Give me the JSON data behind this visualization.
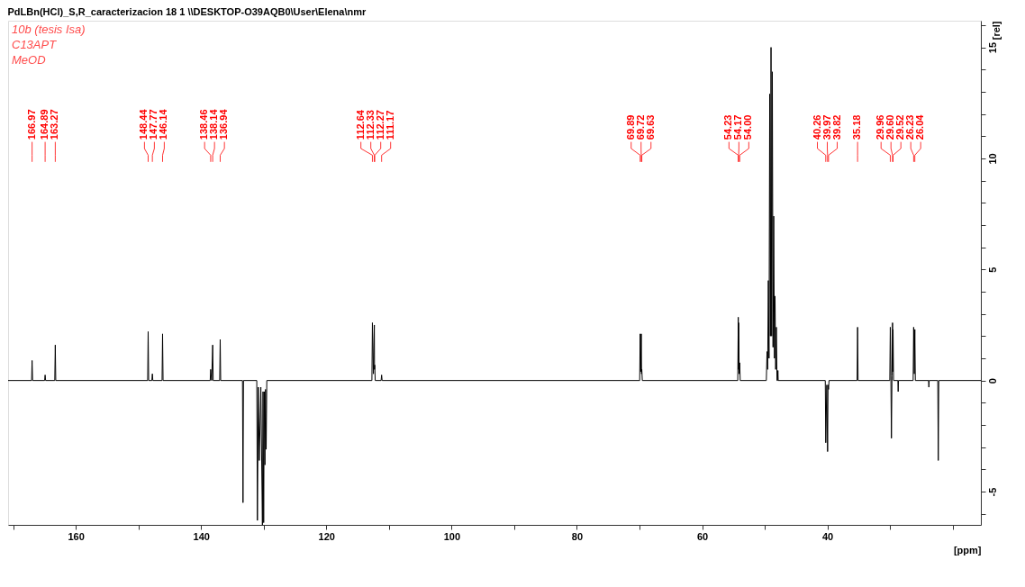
{
  "chart_data": {
    "type": "line",
    "title": "PdLBn(HCl)_S,R_caracterizacion  18  1  \\\\DESKTOP-O39AQB0\\User\\Elena\\nmr",
    "xlabel": "[ppm]",
    "ylabel": "[rel]",
    "xlim": [
      170.8,
      15.5
    ],
    "ylim": [
      -6.5,
      16.2
    ],
    "xticks": [
      {
        "value": 170,
        "label": null
      },
      160,
      {
        "value": 150,
        "label": null
      },
      140,
      {
        "value": 130,
        "label": null
      },
      120,
      {
        "value": 110,
        "label": null
      },
      100,
      {
        "value": 90,
        "label": null
      },
      80,
      {
        "value": 70,
        "label": null
      },
      60,
      {
        "value": 50,
        "label": null
      },
      40,
      {
        "value": 30,
        "label": null
      },
      {
        "value": 20,
        "label": null
      }
    ],
    "yticks": [
      {
        "value": -6,
        "label": null
      },
      -5,
      {
        "value": -4,
        "label": null
      },
      {
        "value": -3,
        "label": null
      },
      {
        "value": -2,
        "label": null
      },
      {
        "value": -1,
        "label": null
      },
      0,
      {
        "value": 1,
        "label": null
      },
      {
        "value": 2,
        "label": null
      },
      {
        "value": 3,
        "label": null
      },
      {
        "value": 4,
        "label": null
      },
      5,
      {
        "value": 6,
        "label": null
      },
      {
        "value": 7,
        "label": null
      },
      {
        "value": 8,
        "label": null
      },
      {
        "value": 9,
        "label": null
      },
      10,
      {
        "value": 11,
        "label": null
      },
      {
        "value": 12,
        "label": null
      },
      {
        "value": 13,
        "label": null
      },
      {
        "value": 14,
        "label": null
      },
      15,
      {
        "value": 16,
        "label": null
      }
    ],
    "grid": false,
    "legend": false,
    "marker": "none",
    "line_style": "solid",
    "series": [
      {
        "color": "#000000",
        "x": [
          170.8,
          167.05,
          166.97,
          166.89,
          164.97,
          164.89,
          164.81,
          163.35,
          163.27,
          163.19,
          148.52,
          148.44,
          148.36,
          147.85,
          147.77,
          147.69,
          146.22,
          146.14,
          146.06,
          138.54,
          138.46,
          138.3,
          138.14,
          138.06,
          137.02,
          136.94,
          136.86,
          133.38,
          133.3,
          133.22,
          131.1,
          131.0,
          130.85,
          130.7,
          130.45,
          130.2,
          130.1,
          130.0,
          129.9,
          129.8,
          129.7,
          129.6,
          129.5,
          112.72,
          112.64,
          112.48,
          112.33,
          112.3,
          112.27,
          112.19,
          111.25,
          111.17,
          111.09,
          69.97,
          69.89,
          69.8,
          69.72,
          69.67,
          69.63,
          69.55,
          54.31,
          54.23,
          54.2,
          54.17,
          54.08,
          54.0,
          53.92,
          49.75,
          49.64,
          49.54,
          49.43,
          49.32,
          49.21,
          49.1,
          49.0,
          48.9,
          48.79,
          48.68,
          48.57,
          48.46,
          48.36,
          48.26,
          48.15,
          48.05,
          47.95,
          47.9,
          47.85,
          40.34,
          40.26,
          40.1,
          39.97,
          39.9,
          39.82,
          39.74,
          35.26,
          35.18,
          35.1,
          30.04,
          29.96,
          29.87,
          29.78,
          29.69,
          29.6,
          29.56,
          29.52,
          29.44,
          28.75,
          28.7,
          28.65,
          26.31,
          26.23,
          26.13,
          26.04,
          25.96,
          23.85,
          23.8,
          23.75,
          22.38,
          22.3,
          22.22,
          15.5
        ],
        "values": [
          0,
          0,
          0.9,
          0,
          0,
          0.25,
          0,
          0,
          1.6,
          0,
          0,
          2.2,
          0,
          0,
          0.3,
          0,
          0,
          2.1,
          0,
          0,
          0.5,
          0,
          1.6,
          0,
          0,
          1.85,
          0,
          0,
          -5.5,
          0,
          0,
          -6.3,
          -0.3,
          -3.6,
          -0.3,
          -6.5,
          -0.5,
          -6.4,
          -0.5,
          -3.8,
          -0.4,
          -3.1,
          0,
          0,
          2.6,
          0.3,
          2.5,
          0.5,
          0.7,
          0,
          0,
          0.25,
          0,
          0,
          2.1,
          0.4,
          2.1,
          0.3,
          0.5,
          0,
          0,
          2.85,
          0.5,
          2.6,
          0.3,
          0.8,
          0,
          0,
          1.3,
          0.5,
          4.5,
          1,
          12.9,
          2,
          15.0,
          2,
          13.9,
          1.5,
          7.4,
          1,
          3.8,
          0.5,
          2.4,
          0,
          0,
          0.45,
          0,
          0,
          -2.8,
          -0.2,
          -3.2,
          -0.2,
          -0.4,
          0,
          0,
          2.4,
          0,
          0,
          2.4,
          0.2,
          -2.6,
          0.2,
          2.6,
          0.4,
          2.3,
          0,
          0,
          -0.5,
          0,
          0,
          2.4,
          0.3,
          2.3,
          0,
          0,
          -0.3,
          0,
          0,
          -3.6,
          0,
          0
        ]
      }
    ],
    "annotations": [
      "10b (tesis Isa)",
      "C13APT",
      "MeOD",
      {
        "text": "166.97",
        "x": 166.97
      },
      {
        "text": "164.89",
        "x": 164.89
      },
      {
        "text": "163.27",
        "x": 163.27
      },
      {
        "text": "148.44",
        "x": 148.44
      },
      {
        "text": "147.77",
        "x": 147.77
      },
      {
        "text": "146.14",
        "x": 146.14
      },
      {
        "text": "138.46",
        "x": 138.46
      },
      {
        "text": "138.14",
        "x": 138.14
      },
      {
        "text": "136.94",
        "x": 136.94
      },
      {
        "text": "112.64",
        "x": 112.64
      },
      {
        "text": "112.33",
        "x": 112.33
      },
      {
        "text": "112.27",
        "x": 112.27
      },
      {
        "text": "111.17",
        "x": 111.17
      },
      {
        "text": "69.89",
        "x": 69.89
      },
      {
        "text": "69.72",
        "x": 69.72
      },
      {
        "text": "69.63",
        "x": 69.63
      },
      {
        "text": "54.23",
        "x": 54.23
      },
      {
        "text": "54.17",
        "x": 54.17
      },
      {
        "text": "54.00",
        "x": 54.0
      },
      {
        "text": "40.26",
        "x": 40.26
      },
      {
        "text": "39.97",
        "x": 39.97
      },
      {
        "text": "39.82",
        "x": 39.82
      },
      {
        "text": "35.18",
        "x": 35.18
      },
      {
        "text": "29.96",
        "x": 29.96
      },
      {
        "text": "29.60",
        "x": 29.6
      },
      {
        "text": "29.52",
        "x": 29.52
      },
      {
        "text": "26.23",
        "x": 26.23
      },
      {
        "text": "26.04",
        "x": 26.04
      }
    ]
  }
}
